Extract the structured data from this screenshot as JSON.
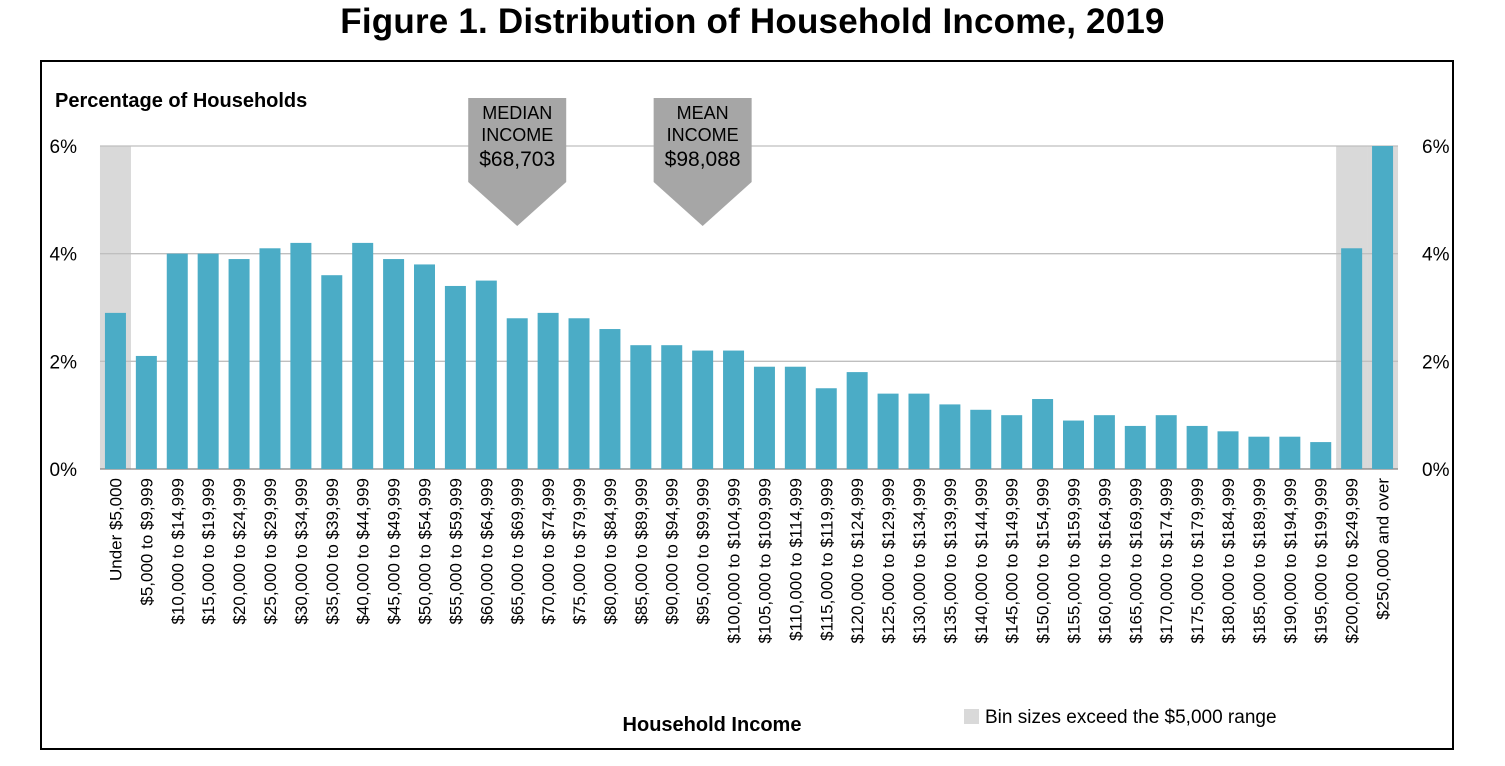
{
  "figure_title": "Figure 1. Distribution of Household Income, 2019",
  "chart_data": {
    "type": "bar",
    "title": "Figure 1. Distribution of Household Income, 2019",
    "ylabel": "Percentage of Households",
    "xlabel": "Household Income",
    "ylim": [
      0,
      6
    ],
    "yticks": [
      "0%",
      "2%",
      "4%",
      "6%"
    ],
    "ytick_values": [
      0,
      2,
      4,
      6
    ],
    "grid": true,
    "bar_color": "#4bacc6",
    "highlight_color": "#d9d9d9",
    "categories": [
      "Under $5,000",
      "$5,000 to $9,999",
      "$10,000 to $14,999",
      "$15,000 to $19,999",
      "$20,000 to $24,999",
      "$25,000 to $29,999",
      "$30,000 to $34,999",
      "$35,000 to $39,999",
      "$40,000 to $44,999",
      "$45,000 to $49,999",
      "$50,000 to $54,999",
      "$55,000 to $59,999",
      "$60,000 to $64,999",
      "$65,000 to $69,999",
      "$70,000 to $74,999",
      "$75,000 to $79,999",
      "$80,000 to $84,999",
      "$85,000 to $89,999",
      "$90,000 to $94,999",
      "$95,000 to $99,999",
      "$100,000 to $104,999",
      "$105,000 to $109,999",
      "$110,000 to $114,999",
      "$115,000 to $119,999",
      "$120,000 to $124,999",
      "$125,000 to $129,999",
      "$130,000 to $134,999",
      "$135,000 to $139,999",
      "$140,000 to $144,999",
      "$145,000 to $149,999",
      "$150,000 to $154,999",
      "$155,000 to $159,999",
      "$160,000 to $164,999",
      "$165,000 to $169,999",
      "$170,000 to $174,999",
      "$175,000 to $179,999",
      "$180,000 to $184,999",
      "$185,000 to $189,999",
      "$190,000 to $194,999",
      "$195,000 to $199,999",
      "$200,000 to $249,999",
      "$250,000 and over"
    ],
    "values": [
      2.9,
      2.1,
      4.0,
      4.0,
      3.9,
      4.1,
      4.2,
      3.6,
      4.2,
      3.9,
      3.8,
      3.4,
      3.5,
      2.8,
      2.9,
      2.8,
      2.6,
      2.3,
      2.3,
      2.2,
      2.2,
      1.9,
      1.9,
      1.5,
      1.8,
      1.4,
      1.4,
      1.2,
      1.1,
      1.0,
      1.3,
      0.9,
      1.0,
      0.8,
      1.0,
      0.8,
      0.7,
      0.6,
      0.6,
      0.5,
      4.1,
      6.0
    ],
    "highlighted_bins": [
      0,
      40,
      41
    ],
    "annotations": [
      {
        "line1": "MEDIAN",
        "line2": "INCOME",
        "value": "$68,703",
        "bin_index": 13
      },
      {
        "line1": "MEAN",
        "line2": "INCOME",
        "value": "$98,088",
        "bin_index": 19
      }
    ],
    "annotation_color": "#a6a6a6",
    "legend": {
      "label": "Bin sizes exceed the $5,000 range",
      "position": "bottom-right"
    }
  }
}
